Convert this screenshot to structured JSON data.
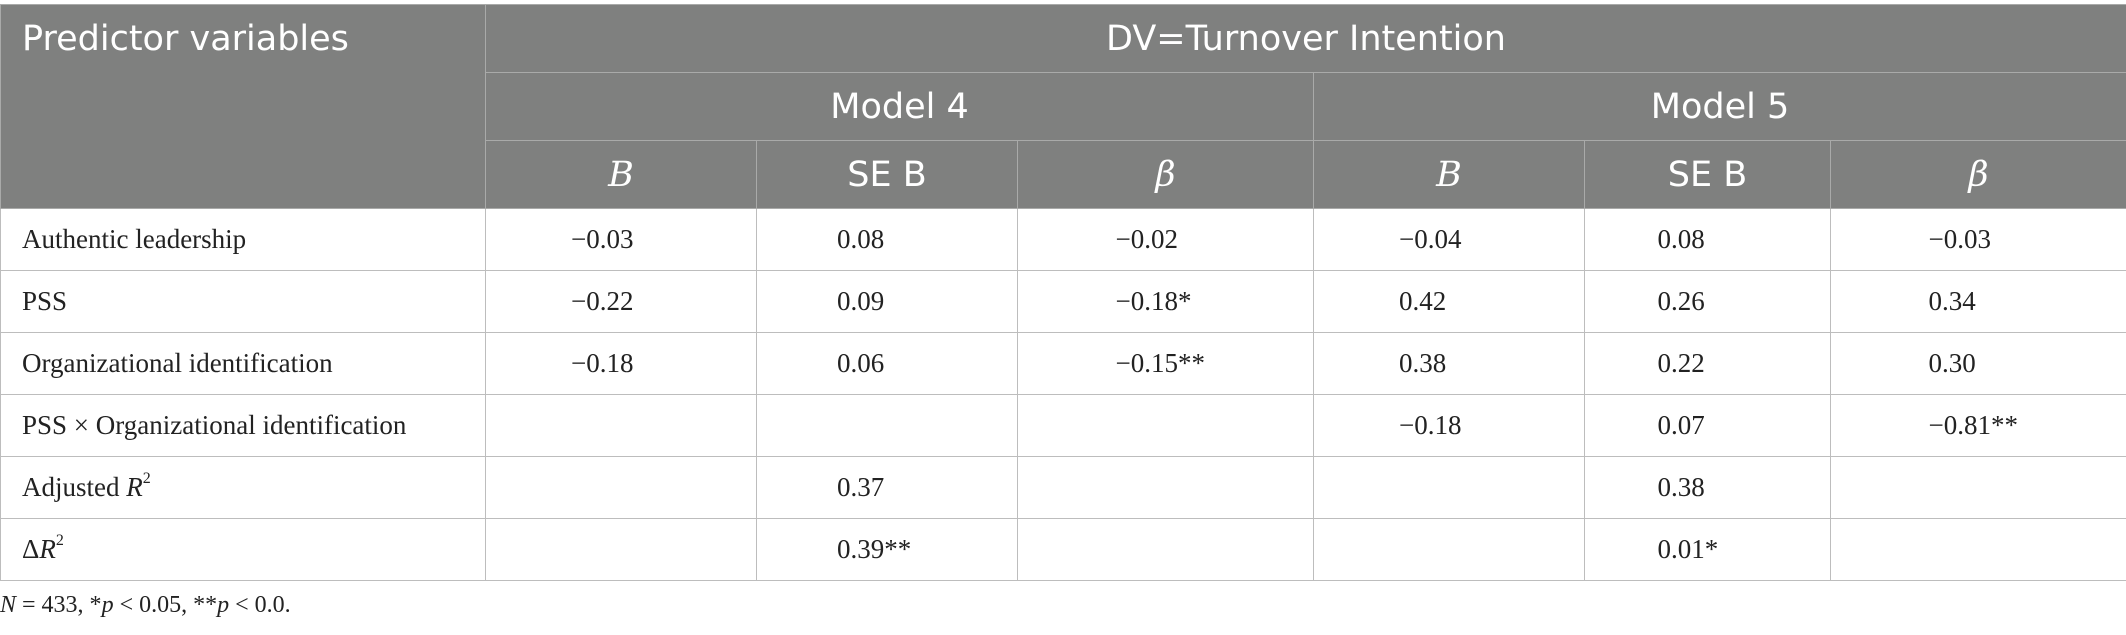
{
  "header": {
    "predictor_label": "Predictor variables",
    "dv_label": "DV=Turnover Intention",
    "models": [
      "Model 4",
      "Model 5"
    ],
    "columns": [
      "B",
      "SE B",
      "β",
      "B",
      "SE B",
      "β"
    ]
  },
  "rows": [
    {
      "label": "Authentic leadership",
      "cells": [
        "−0.03",
        "0.08",
        "−0.02",
        "−0.04",
        "0.08",
        "−0.03"
      ]
    },
    {
      "label": "PSS",
      "cells": [
        "−0.22",
        "0.09",
        "−0.18*",
        "0.42",
        "0.26",
        "0.34"
      ]
    },
    {
      "label": "Organizational identification",
      "cells": [
        "−0.18",
        "0.06",
        "−0.15**",
        "0.38",
        "0.22",
        "0.30"
      ]
    },
    {
      "label": "PSS × Organizational identification",
      "cells": [
        "",
        "",
        "",
        "−0.18",
        "0.07",
        "−0.81**"
      ]
    }
  ],
  "adjusted_r2": {
    "label_prefix": "Adjusted ",
    "label_var": "R",
    "label_exp": "2",
    "model4": "0.37",
    "model5": "0.38"
  },
  "delta_r2": {
    "label_prefix": "Δ",
    "label_var": "R",
    "label_exp": "2",
    "model4": "0.39**",
    "model5": "0.01*"
  },
  "note": {
    "n_var": "N",
    "n_text": " = 433, *",
    "p1_var": "p",
    "p1_text": " < 0.05, **",
    "p2_var": "p",
    "p2_text": " < 0.0."
  }
}
